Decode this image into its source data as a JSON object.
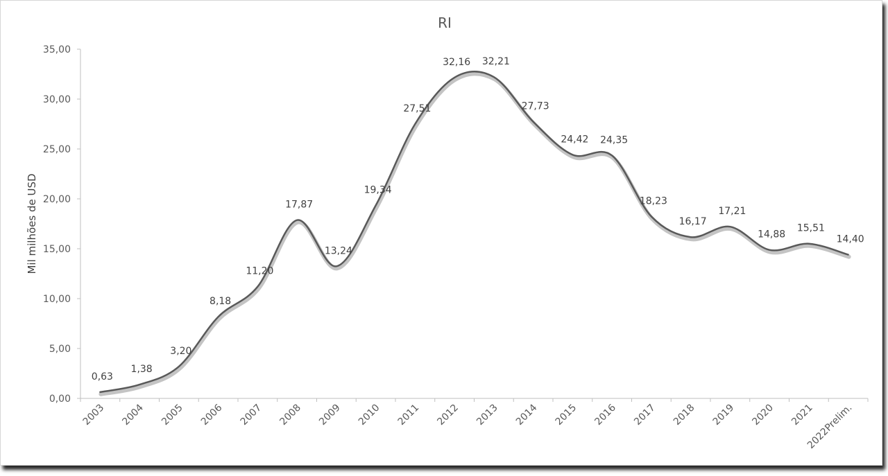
{
  "chart_data": {
    "type": "line",
    "title": "RI",
    "xlabel": "",
    "ylabel": "Mil milhões de USD",
    "ylim": [
      0,
      35
    ],
    "y_ticks": [
      "0,00",
      "5,00",
      "10,00",
      "15,00",
      "20,00",
      "25,00",
      "30,00",
      "35,00"
    ],
    "grid": false,
    "legend": "none",
    "categories": [
      "2003",
      "2004",
      "2005",
      "2006",
      "2007",
      "2008",
      "2009",
      "2010",
      "2011",
      "2012",
      "2013",
      "2014",
      "2015",
      "2016",
      "2017",
      "2018",
      "2019",
      "2020",
      "2021",
      "2022Prelim."
    ],
    "series": [
      {
        "values": [
          0.63,
          1.38,
          3.2,
          8.18,
          11.2,
          17.87,
          13.24,
          19.34,
          27.51,
          32.16,
          32.21,
          27.73,
          24.42,
          24.35,
          18.23,
          16.17,
          17.21,
          14.88,
          15.51,
          14.4
        ],
        "labels": [
          "0,63",
          "1,38",
          "3,20",
          "8,18",
          "11,20",
          "17,87",
          "13,24",
          "19,34",
          "27,51",
          "32,16",
          "32,21",
          "27,73",
          "24,42",
          "24,35",
          "18,23",
          "16,17",
          "17,21",
          "14,88",
          "15,51",
          "14,40"
        ],
        "color": "#595959"
      }
    ]
  }
}
